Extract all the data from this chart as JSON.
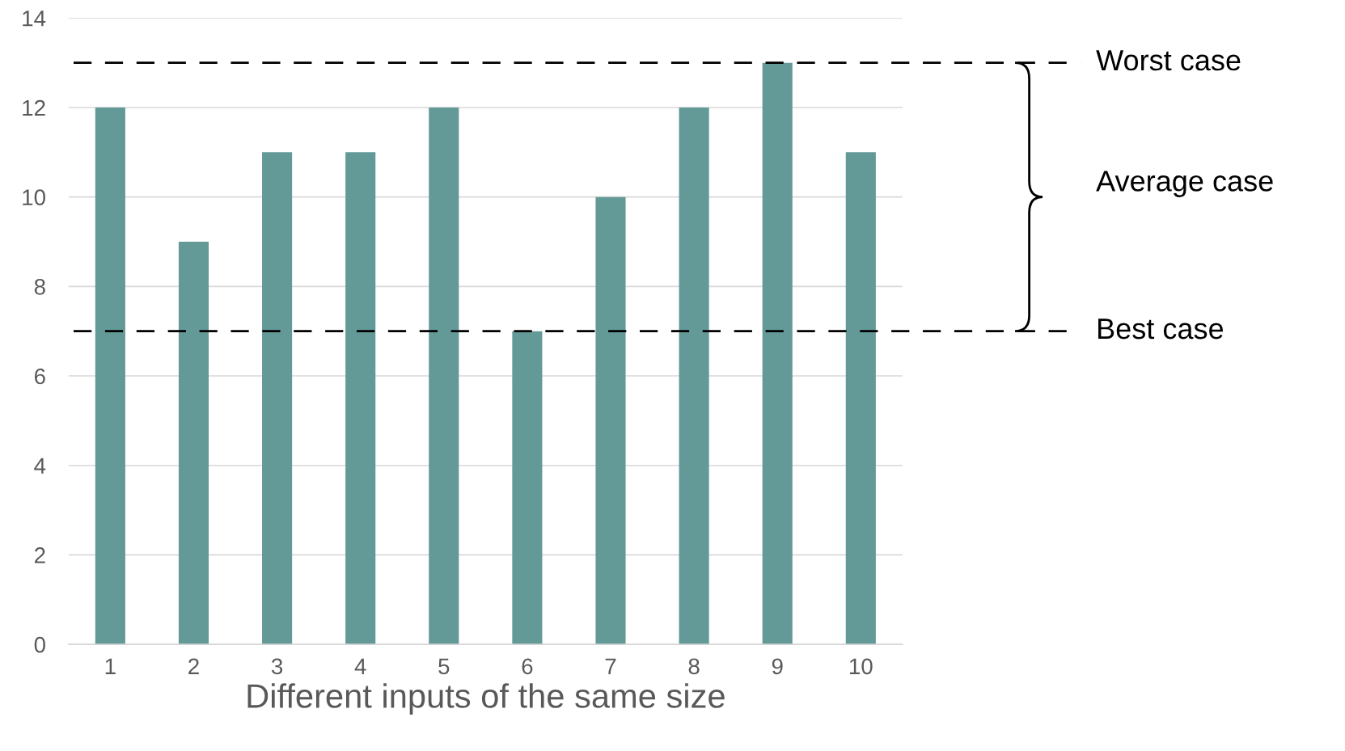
{
  "chart_data": {
    "type": "bar",
    "xlabel": "Different inputs of the same size",
    "categories": [
      "1",
      "2",
      "3",
      "4",
      "5",
      "6",
      "7",
      "8",
      "9",
      "10"
    ],
    "values": [
      12,
      9,
      11,
      11,
      12,
      7,
      10,
      12,
      13,
      11
    ],
    "color": "#639a98",
    "ylim": [
      0,
      14
    ],
    "yticks": [
      0,
      2,
      4,
      6,
      8,
      10,
      12,
      14
    ],
    "grid": "y",
    "ref_lines": [
      {
        "axis": "y",
        "value": 13,
        "label": "Worst case",
        "color": "#000000",
        "line_style": "dashed"
      },
      {
        "axis": "y",
        "value": 7,
        "label": "Best case",
        "color": "#000000",
        "line_style": "dashed"
      }
    ],
    "annotations": [
      "Average case"
    ]
  }
}
